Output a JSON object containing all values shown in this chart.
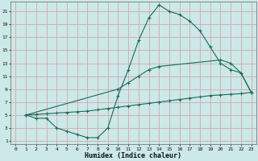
{
  "xlabel": "Humidex (Indice chaleur)",
  "bg_color": "#cce8e8",
  "grid_color": "#d4a8a8",
  "line_color": "#1a6b5a",
  "xlim": [
    -0.5,
    23.5
  ],
  "ylim": [
    0.5,
    22.5
  ],
  "xticks": [
    0,
    1,
    2,
    3,
    4,
    5,
    6,
    7,
    8,
    9,
    10,
    11,
    12,
    13,
    14,
    15,
    16,
    17,
    18,
    19,
    20,
    21,
    22,
    23
  ],
  "yticks": [
    1,
    3,
    5,
    7,
    9,
    11,
    13,
    15,
    17,
    19,
    21
  ],
  "curve1_x": [
    1,
    2,
    3,
    4,
    5,
    6,
    7,
    8,
    9,
    10,
    11,
    12,
    13,
    14,
    15,
    16,
    17,
    18,
    19,
    20,
    21,
    22,
    23
  ],
  "curve1_y": [
    5,
    4.5,
    4.5,
    3,
    2.5,
    2,
    1.5,
    1.5,
    3,
    8,
    12,
    16.5,
    20,
    22,
    21,
    20.5,
    19.5,
    18,
    15.5,
    13,
    12,
    11.5,
    8.5
  ],
  "curve2_x": [
    1,
    10,
    11,
    12,
    13,
    14,
    20,
    21,
    22,
    23
  ],
  "curve2_y": [
    5,
    9,
    10,
    11,
    12,
    12.5,
    13.5,
    13,
    11.5,
    8.5
  ],
  "curve3_x": [
    1,
    2,
    3,
    4,
    5,
    6,
    7,
    8,
    9,
    10,
    11,
    12,
    13,
    14,
    15,
    16,
    17,
    18,
    19,
    20,
    21,
    22,
    23
  ],
  "curve3_y": [
    5,
    5.1,
    5.2,
    5.3,
    5.4,
    5.5,
    5.6,
    5.8,
    6.0,
    6.2,
    6.4,
    6.6,
    6.8,
    7.0,
    7.2,
    7.4,
    7.6,
    7.8,
    8.0,
    8.1,
    8.2,
    8.3,
    8.5
  ]
}
